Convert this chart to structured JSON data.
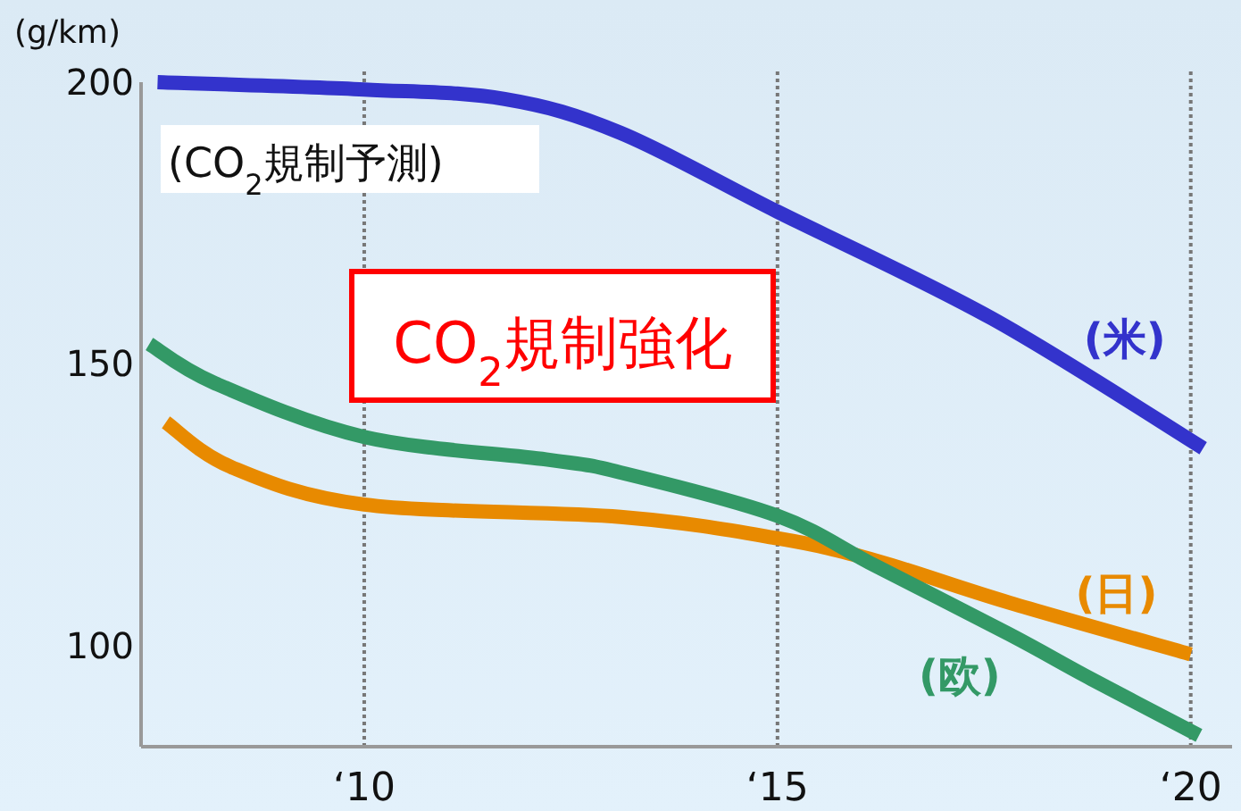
{
  "chart_data": {
    "type": "line",
    "title": "(CO$_{2}$規制予測)",
    "ylabel": "(g/km)",
    "annotations": [
      "CO$_{2}$規制強化"
    ],
    "xlim": [
      7.3,
      20.5
    ],
    "ylim": [
      82,
      200
    ],
    "xticks": [
      {
        "value": 10,
        "label": "‘10"
      },
      {
        "value": 15,
        "label": "‘15"
      },
      {
        "value": 20,
        "label": "‘20"
      }
    ],
    "yticks": [
      100,
      150,
      200
    ],
    "grid": "x",
    "line_style": "solid",
    "series": [
      {
        "name": "(米)",
        "color": "#3333cc",
        "x": [
          7.5,
          10,
          11.7,
          13.1,
          15,
          17.6,
          20.15
        ],
        "values": [
          200,
          198.7,
          197,
          191,
          177,
          158,
          135
        ]
      },
      {
        "name": "(日)",
        "color": "#e88a00",
        "x": [
          7.6,
          8.4,
          10,
          13.1,
          15,
          16.2,
          17.8,
          20
        ],
        "values": [
          139.6,
          131.6,
          125,
          122.8,
          119,
          115,
          107.6,
          98.4
        ]
      },
      {
        "name": "(欧)",
        "color": "#339966",
        "x": [
          7.4,
          8.2,
          10,
          12.2,
          13.1,
          15,
          16.2,
          17.8,
          18.8,
          20.1
        ],
        "values": [
          153.5,
          146.5,
          137,
          133,
          130.7,
          123,
          114,
          102,
          94,
          84
        ]
      }
    ]
  }
}
